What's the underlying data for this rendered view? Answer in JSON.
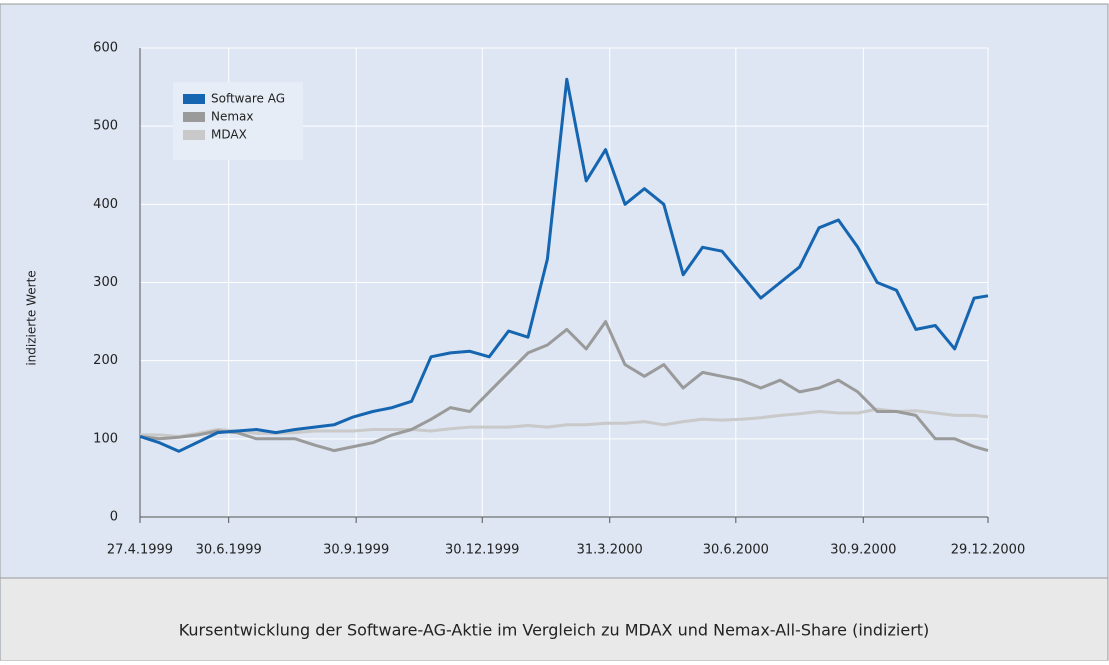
{
  "chart_data": {
    "type": "line",
    "caption": "Kursentwicklung der Software-AG-Aktie im Vergleich zu MDAX und Nemax-All-Share (indiziert)",
    "ylabel": "indizierte Werte",
    "x": [
      "1999-04-27",
      "1999-05-11",
      "1999-05-25",
      "1999-06-08",
      "1999-06-22",
      "1999-07-06",
      "1999-07-20",
      "1999-08-03",
      "1999-08-17",
      "1999-08-31",
      "1999-09-14",
      "1999-09-28",
      "1999-10-12",
      "1999-10-26",
      "1999-11-09",
      "1999-11-23",
      "1999-12-07",
      "1999-12-21",
      "2000-01-04",
      "2000-01-18",
      "2000-02-01",
      "2000-02-15",
      "2000-02-29",
      "2000-03-14",
      "2000-03-28",
      "2000-04-11",
      "2000-04-25",
      "2000-05-09",
      "2000-05-23",
      "2000-06-06",
      "2000-06-20",
      "2000-07-04",
      "2000-07-18",
      "2000-08-01",
      "2000-08-15",
      "2000-08-29",
      "2000-09-12",
      "2000-09-26",
      "2000-10-10",
      "2000-10-24",
      "2000-11-07",
      "2000-11-21",
      "2000-12-05",
      "2000-12-19",
      "2000-12-29"
    ],
    "series": [
      {
        "name": "Software AG",
        "color": "#1565b0",
        "values": [
          103,
          95,
          84,
          96,
          108,
          110,
          112,
          108,
          112,
          115,
          118,
          128,
          135,
          140,
          148,
          205,
          210,
          212,
          205,
          238,
          230,
          330,
          560,
          430,
          470,
          400,
          420,
          400,
          310,
          345,
          340,
          310,
          280,
          300,
          320,
          370,
          380,
          345,
          300,
          290,
          240,
          245,
          215,
          280,
          283
        ]
      },
      {
        "name": "Nemax",
        "color": "#9a9a9a",
        "values": [
          103,
          100,
          102,
          105,
          110,
          108,
          100,
          100,
          100,
          92,
          85,
          90,
          95,
          105,
          112,
          125,
          140,
          135,
          160,
          185,
          210,
          220,
          240,
          215,
          250,
          195,
          180,
          195,
          165,
          185,
          180,
          175,
          165,
          175,
          160,
          165,
          175,
          160,
          135,
          135,
          130,
          100,
          100,
          90,
          85
        ]
      },
      {
        "name": "MDAX",
        "color": "#c9c9c9",
        "values": [
          105,
          105,
          103,
          107,
          112,
          110,
          107,
          107,
          108,
          110,
          110,
          110,
          112,
          112,
          112,
          110,
          113,
          115,
          115,
          115,
          117,
          115,
          118,
          118,
          120,
          120,
          122,
          118,
          122,
          125,
          124,
          125,
          127,
          130,
          132,
          135,
          133,
          133,
          138,
          135,
          136,
          133,
          130,
          130,
          128
        ]
      }
    ],
    "xlim": [
      "1999-04-27",
      "2000-12-29"
    ],
    "xticks": [
      {
        "value": "1999-04-27",
        "label": "27.4.1999"
      },
      {
        "value": "1999-06-30",
        "label": "30.6.1999"
      },
      {
        "value": "1999-09-30",
        "label": "30.9.1999"
      },
      {
        "value": "1999-12-30",
        "label": "30.12.1999"
      },
      {
        "value": "2000-03-31",
        "label": "31.3.2000"
      },
      {
        "value": "2000-06-30",
        "label": "30.6.2000"
      },
      {
        "value": "2000-09-30",
        "label": "30.9.2000"
      },
      {
        "value": "2000-12-29",
        "label": "29.12.2000"
      }
    ],
    "ylim": [
      0,
      600
    ],
    "yticks": [
      0,
      100,
      200,
      300,
      400,
      500,
      600
    ],
    "grid": true,
    "legend": "upper left"
  }
}
